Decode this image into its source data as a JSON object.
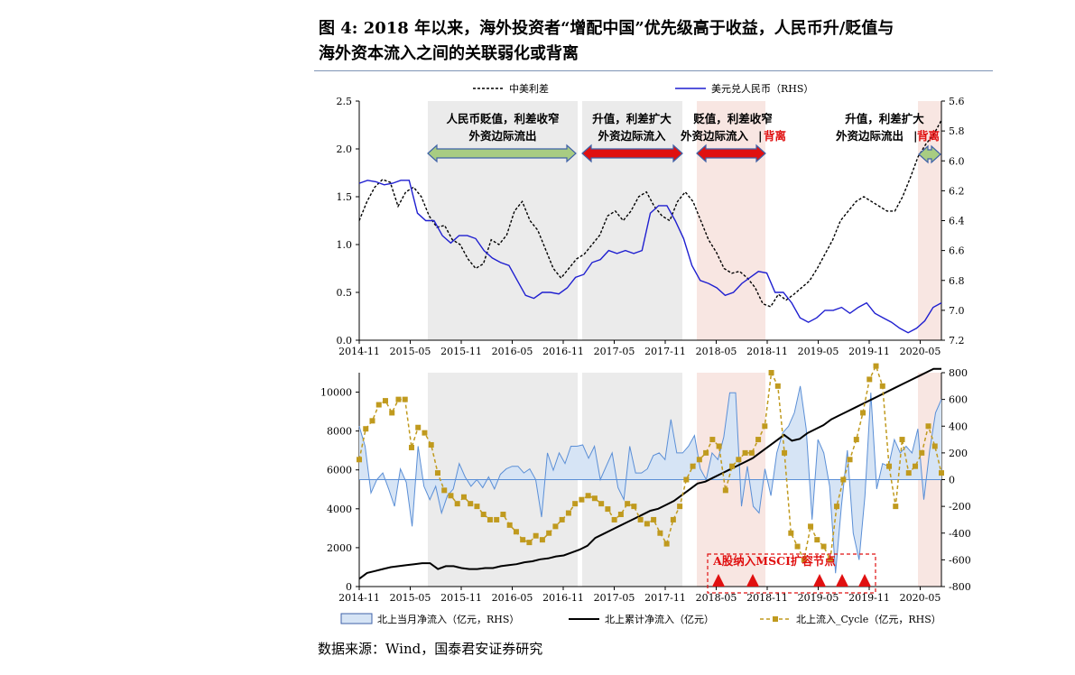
{
  "title_line1": "图 4: 2018 年以来，海外投资者“增配中国”优先级高于收益，人民币升/贬值与",
  "title_line2": "海外资本流入之间的关联弱化或背离",
  "source": "数据来源：Wind，国泰君安证券研究",
  "chart_data": [
    {
      "type": "line",
      "xticks": [
        "2014-11",
        "2015-05",
        "2015-11",
        "2016-05",
        "2016-11",
        "2017-05",
        "2017-11",
        "2018-05",
        "2018-11",
        "2019-05",
        "2019-11",
        "2020-05"
      ],
      "ylim": [
        0.0,
        2.5
      ],
      "yticks": [
        "0.0",
        "0.5",
        "1.0",
        "1.5",
        "2.0",
        "2.5"
      ],
      "y2lim": [
        5.6,
        7.2
      ],
      "y2ticks": [
        "5.6",
        "5.8",
        "6.0",
        "6.2",
        "6.4",
        "6.6",
        "6.8",
        "7.0",
        "7.2"
      ],
      "y2_inverted": true,
      "grid": false,
      "legend_position": "top",
      "series": [
        {
          "name": "中美利差",
          "axis": "left",
          "style": "dashed",
          "color": "#000000",
          "values": [
            1.25,
            1.45,
            1.6,
            1.68,
            1.65,
            1.4,
            1.55,
            1.6,
            1.5,
            1.3,
            1.18,
            1.2,
            1.05,
            1.0,
            0.85,
            0.75,
            0.8,
            1.05,
            1.0,
            1.1,
            1.35,
            1.45,
            1.25,
            1.15,
            0.95,
            0.75,
            0.65,
            0.75,
            0.85,
            0.9,
            1.0,
            1.1,
            1.3,
            1.35,
            1.25,
            1.35,
            1.5,
            1.55,
            1.4,
            1.3,
            1.25,
            1.45,
            1.55,
            1.45,
            1.25,
            1.05,
            0.92,
            0.75,
            0.7,
            0.72,
            0.65,
            0.55,
            0.38,
            0.35,
            0.48,
            0.42,
            0.48,
            0.55,
            0.62,
            0.75,
            0.9,
            1.05,
            1.25,
            1.35,
            1.45,
            1.5,
            1.45,
            1.4,
            1.35,
            1.35,
            1.5,
            1.7,
            1.92,
            2.05,
            2.15,
            2.3
          ]
        },
        {
          "name": "美元兑人民币（RHS）",
          "axis": "right",
          "style": "solid",
          "color": "#1f1fd0",
          "values": [
            6.15,
            6.13,
            6.14,
            6.16,
            6.15,
            6.13,
            6.13,
            6.35,
            6.4,
            6.4,
            6.5,
            6.55,
            6.5,
            6.5,
            6.52,
            6.6,
            6.65,
            6.68,
            6.7,
            6.8,
            6.9,
            6.92,
            6.88,
            6.88,
            6.89,
            6.85,
            6.78,
            6.76,
            6.68,
            6.66,
            6.6,
            6.62,
            6.6,
            6.62,
            6.6,
            6.35,
            6.3,
            6.3,
            6.4,
            6.52,
            6.7,
            6.8,
            6.82,
            6.85,
            6.9,
            6.88,
            6.82,
            6.78,
            6.74,
            6.75,
            6.88,
            6.88,
            6.95,
            7.05,
            7.08,
            7.05,
            7.0,
            7.0,
            6.98,
            7.02,
            6.98,
            6.95,
            7.02,
            7.05,
            7.08,
            7.12,
            7.15,
            7.12,
            7.07,
            6.98,
            6.95
          ]
        }
      ],
      "annotations": [
        {
          "text": "人民币贬值，利差收窄",
          "line2": "外资边际流出",
          "arrow": "green"
        },
        {
          "text": "升值，利差扩大",
          "line2": "外资边际流入",
          "arrow": "red"
        },
        {
          "text": "贬值，利差收窄",
          "line2": "外资边际流入",
          "line2_red": "背离",
          "arrow": "red"
        },
        {
          "text": "升值，利差扩大",
          "line2": "外资边际流出",
          "line2_red": "背离",
          "arrow": "green"
        }
      ]
    },
    {
      "type": "area",
      "xticks": [
        "2014-11",
        "2015-05",
        "2015-11",
        "2016-05",
        "2016-11",
        "2017-05",
        "2017-11",
        "2018-05",
        "2018-11",
        "2019-05",
        "2019-11",
        "2020-05"
      ],
      "ylim": [
        0,
        11000
      ],
      "yticks": [
        "0",
        "2000",
        "4000",
        "6000",
        "8000",
        "10000"
      ],
      "y2lim": [
        -800,
        800
      ],
      "y2ticks": [
        "-800",
        "-600",
        "-400",
        "-200",
        "0",
        "200",
        "400",
        "600",
        "800"
      ],
      "legend_position": "bottom",
      "series": [
        {
          "name": "北上当月净流入（亿元，RHS）",
          "axis": "right",
          "style": "area",
          "color": "#3a6ec9",
          "values": [
            400,
            250,
            -100,
            0,
            50,
            -70,
            -200,
            80,
            -20,
            -350,
            250,
            -50,
            -150,
            -50,
            -250,
            -120,
            -70,
            120,
            20,
            -50,
            0,
            -60,
            20,
            -70,
            40,
            80,
            100,
            100,
            50,
            80,
            0,
            -280,
            200,
            70,
            200,
            120,
            250,
            250,
            260,
            160,
            250,
            0,
            100,
            200,
            -60,
            -150,
            250,
            50,
            50,
            80,
            180,
            200,
            150,
            450,
            200,
            200,
            250,
            330,
            80,
            0,
            200,
            150,
            320,
            650,
            650,
            -200,
            100,
            -200,
            -250,
            80,
            -120,
            200,
            350,
            400,
            500,
            700,
            380,
            -300,
            300,
            200,
            -50,
            -700,
            -200,
            220,
            -400,
            -600,
            -120,
            650,
            -70,
            120,
            100,
            300,
            200,
            250,
            200,
            380,
            -150,
            220,
            500,
            600
          ]
        },
        {
          "name": "北上累计净流入（亿元）",
          "axis": "left",
          "style": "line",
          "color": "#000000",
          "values": [
            400,
            700,
            800,
            900,
            1000,
            1050,
            1100,
            1150,
            1200,
            1200,
            900,
            1050,
            1050,
            950,
            900,
            900,
            950,
            950,
            1050,
            1100,
            1150,
            1250,
            1300,
            1400,
            1450,
            1550,
            1600,
            1750,
            1900,
            2100,
            2500,
            2700,
            2900,
            3100,
            3300,
            3500,
            3700,
            3900,
            4000,
            4200,
            4400,
            4700,
            5000,
            5300,
            5400,
            5600,
            5800,
            6000,
            6200,
            6400,
            6600,
            6900,
            7200,
            7500,
            7800,
            7500,
            7600,
            7900,
            8100,
            8300,
            8600,
            8800,
            9000,
            9200,
            9400,
            9600,
            9800,
            10000,
            10200,
            10400,
            10600,
            10800,
            11000,
            11200,
            11200
          ]
        },
        {
          "name": "北上流入_Cycle（亿元，RHS）",
          "axis": "right",
          "style": "dashed-square",
          "color": "#c09a1e",
          "values": [
            150,
            380,
            440,
            560,
            590,
            500,
            600,
            600,
            240,
            390,
            350,
            260,
            50,
            -80,
            -120,
            -180,
            -130,
            -180,
            -200,
            -260,
            -300,
            -300,
            -260,
            -340,
            -390,
            -450,
            -470,
            -420,
            -450,
            -400,
            -350,
            -300,
            -250,
            -180,
            -150,
            -120,
            -140,
            -180,
            -220,
            -300,
            -260,
            -180,
            -200,
            -300,
            -330,
            -300,
            -400,
            -480,
            -300,
            -200,
            0,
            100,
            150,
            200,
            300,
            250,
            -80,
            100,
            150,
            200,
            200,
            300,
            400,
            800,
            700,
            200,
            -400,
            -500,
            -600,
            -350,
            -450,
            -500,
            -600,
            -200,
            0,
            150,
            300,
            500,
            750,
            850,
            700,
            100,
            -200,
            300,
            50,
            100,
            200,
            400,
            250,
            50
          ]
        }
      ],
      "annotations": [
        {
          "text": "A股纳入MSCI扩容节点"
        }
      ]
    }
  ]
}
